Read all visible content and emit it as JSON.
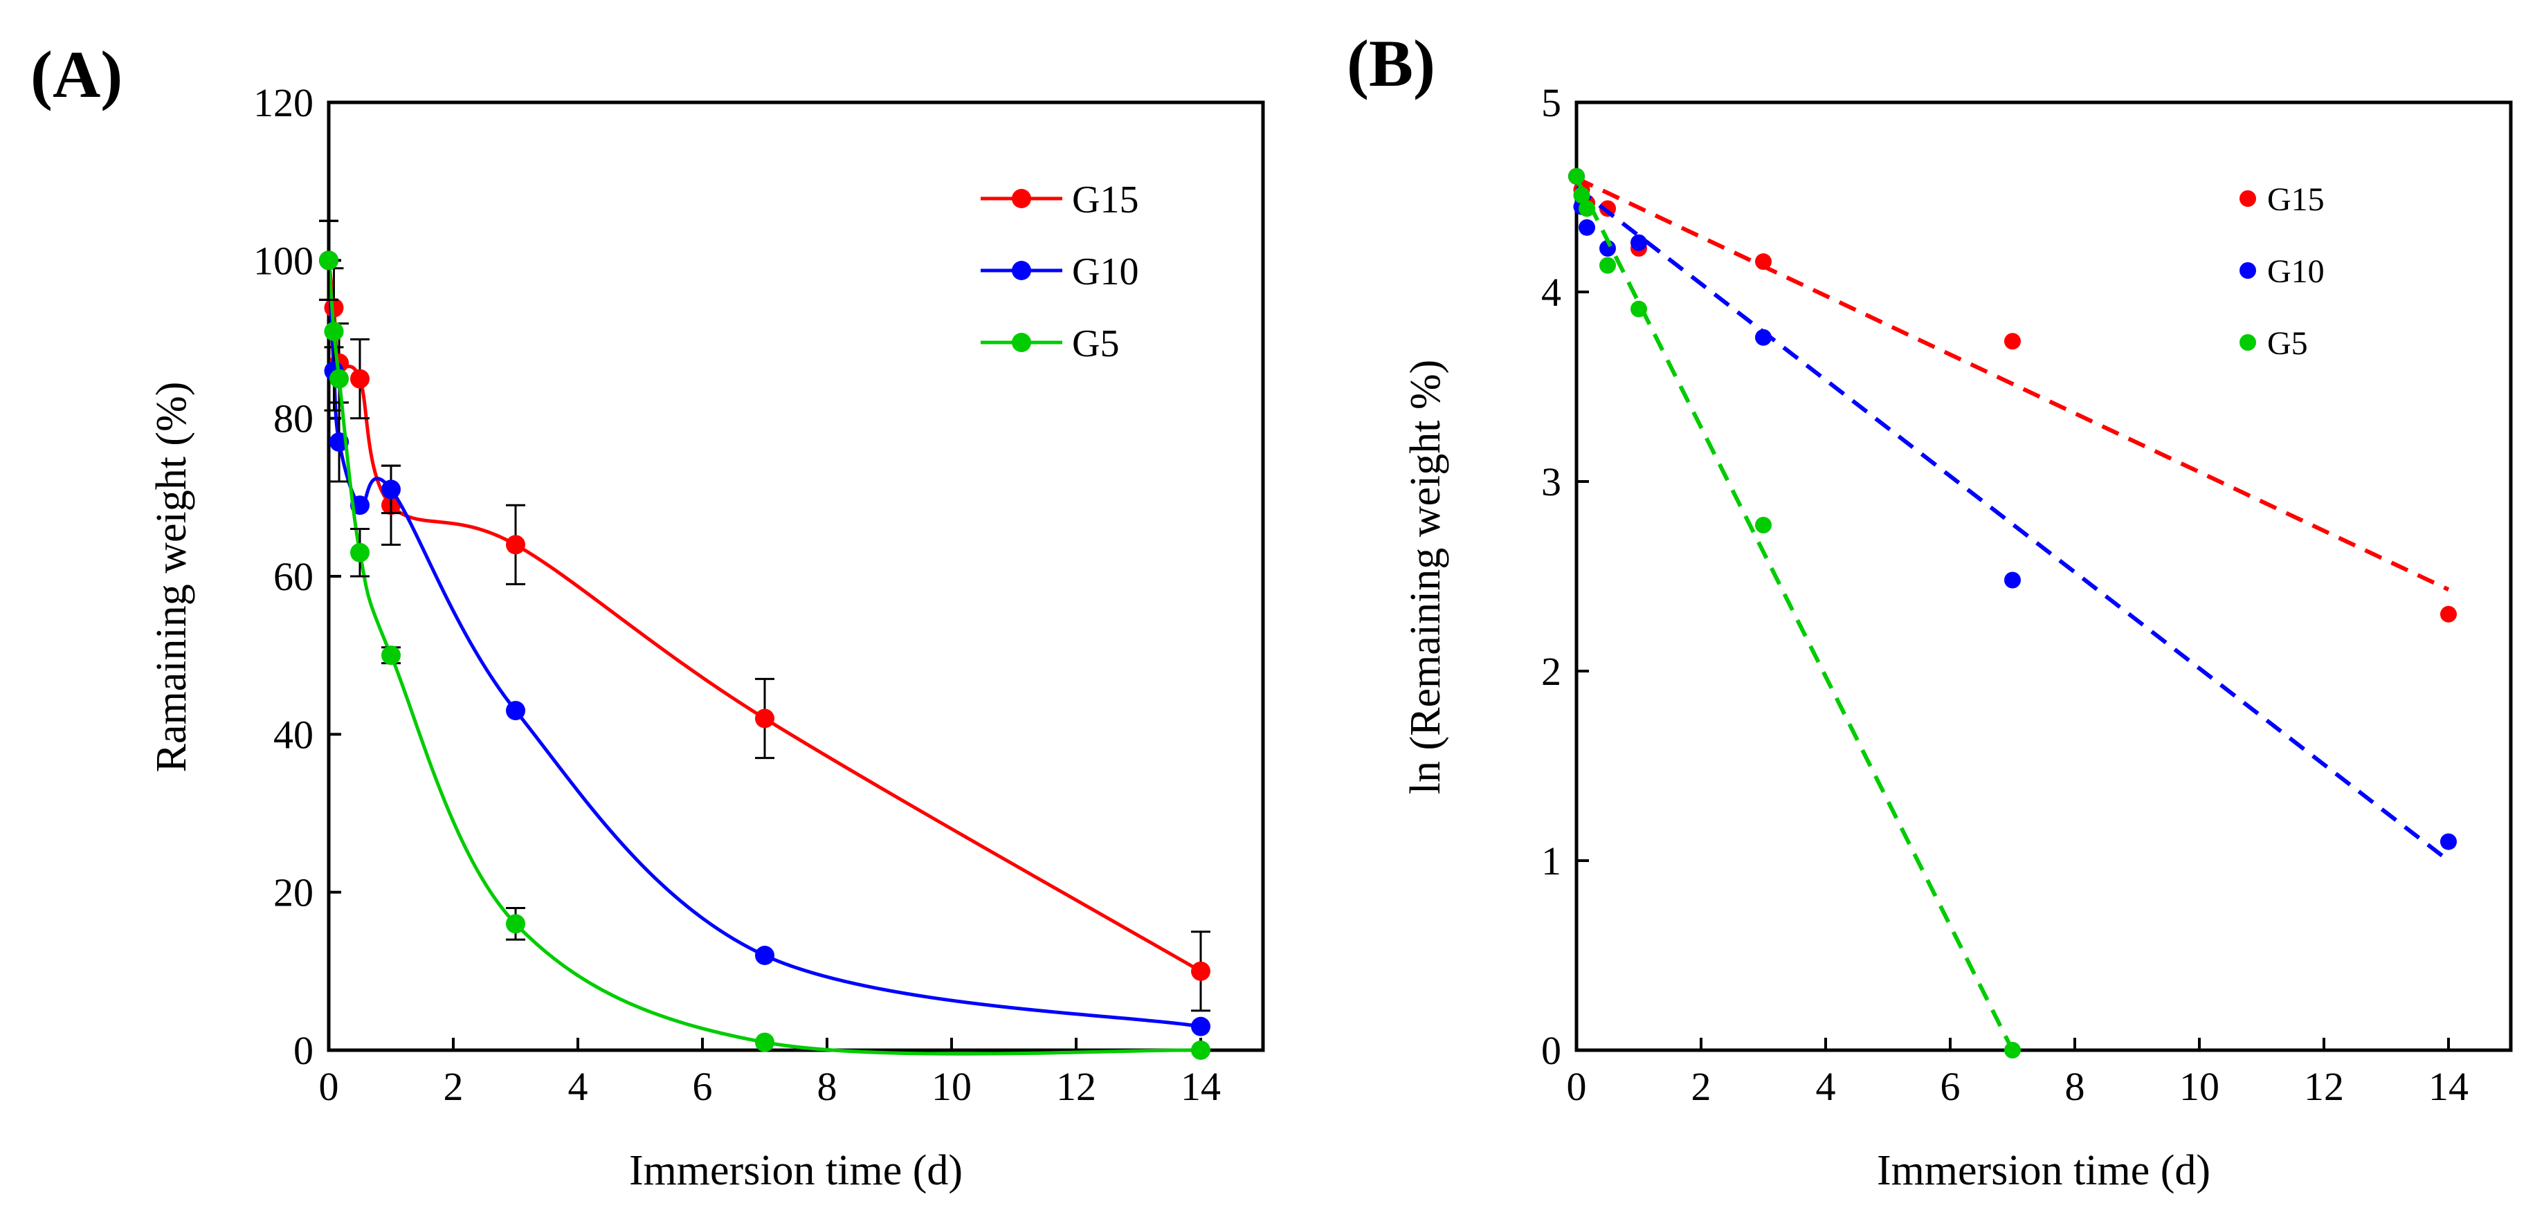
{
  "chart_data": [
    {
      "panel": "(A)",
      "type": "line",
      "xlabel": "Immersion time (d)",
      "ylabel": "Ramaining weight (%)",
      "xlim": [
        0,
        15
      ],
      "ylim": [
        0,
        120
      ],
      "xticks": [
        "0",
        "2",
        "4",
        "6",
        "8",
        "10",
        "12",
        "14"
      ],
      "yticks": [
        "0",
        "20",
        "40",
        "60",
        "80",
        "100",
        "120"
      ],
      "legend_position": "top-right",
      "smooth": true,
      "error_bars": true,
      "series": [
        {
          "name": "G15",
          "color": "#ff0000",
          "x": [
            0,
            0.083,
            0.167,
            0.5,
            1,
            3,
            7,
            14
          ],
          "y": [
            100,
            94,
            87,
            85,
            69,
            64,
            42,
            10
          ],
          "err": [
            5,
            5,
            5,
            5,
            5,
            5,
            5,
            5
          ]
        },
        {
          "name": "G10",
          "color": "#0000ff",
          "x": [
            0,
            0.083,
            0.167,
            0.5,
            1,
            3,
            7,
            14
          ],
          "y": [
            100,
            86,
            77,
            69,
            71,
            43,
            12,
            3
          ],
          "err": [
            5,
            5,
            5,
            0,
            3,
            0,
            0,
            0
          ]
        },
        {
          "name": "G5",
          "color": "#00cc00",
          "x": [
            0,
            0.083,
            0.167,
            0.5,
            1,
            3,
            7,
            14
          ],
          "y": [
            100,
            91,
            85,
            63,
            50,
            16,
            1,
            0
          ],
          "err": [
            5,
            0,
            0,
            3,
            1,
            2,
            0,
            0
          ]
        }
      ]
    },
    {
      "panel": "(B)",
      "type": "scatter",
      "xlabel": "Immersion time (d)",
      "ylabel": "ln (Remaining weight %)",
      "xlim": [
        0,
        15
      ],
      "ylim": [
        0,
        5
      ],
      "xticks": [
        "0",
        "2",
        "4",
        "6",
        "8",
        "10",
        "12",
        "14"
      ],
      "yticks": [
        "0",
        "1",
        "2",
        "3",
        "4",
        "5"
      ],
      "legend_position": "top-right",
      "trendline": "linear, dashed",
      "series": [
        {
          "name": "G15",
          "color": "#ff0000",
          "x": [
            0,
            0.083,
            0.167,
            0.5,
            1,
            3,
            7,
            14
          ],
          "y": [
            4.61,
            4.54,
            4.47,
            4.44,
            4.23,
            4.16,
            3.74,
            2.3
          ],
          "fit": {
            "x": [
              0,
              14
            ],
            "y": [
              4.6,
              2.43
            ]
          }
        },
        {
          "name": "G10",
          "color": "#0000ff",
          "x": [
            0,
            0.083,
            0.167,
            0.5,
            1,
            3,
            7,
            14
          ],
          "y": [
            4.61,
            4.45,
            4.34,
            4.23,
            4.26,
            3.76,
            2.48,
            1.1
          ],
          "fit": {
            "x": [
              0,
              14
            ],
            "y": [
              4.55,
              1.0
            ]
          }
        },
        {
          "name": "G5",
          "color": "#00cc00",
          "x": [
            0,
            0.083,
            0.167,
            0.5,
            1,
            3,
            7
          ],
          "y": [
            4.61,
            4.51,
            4.44,
            4.14,
            3.91,
            2.77,
            0
          ],
          "fit": {
            "x": [
              0,
              7
            ],
            "y": [
              4.6,
              0
            ]
          }
        }
      ]
    }
  ]
}
